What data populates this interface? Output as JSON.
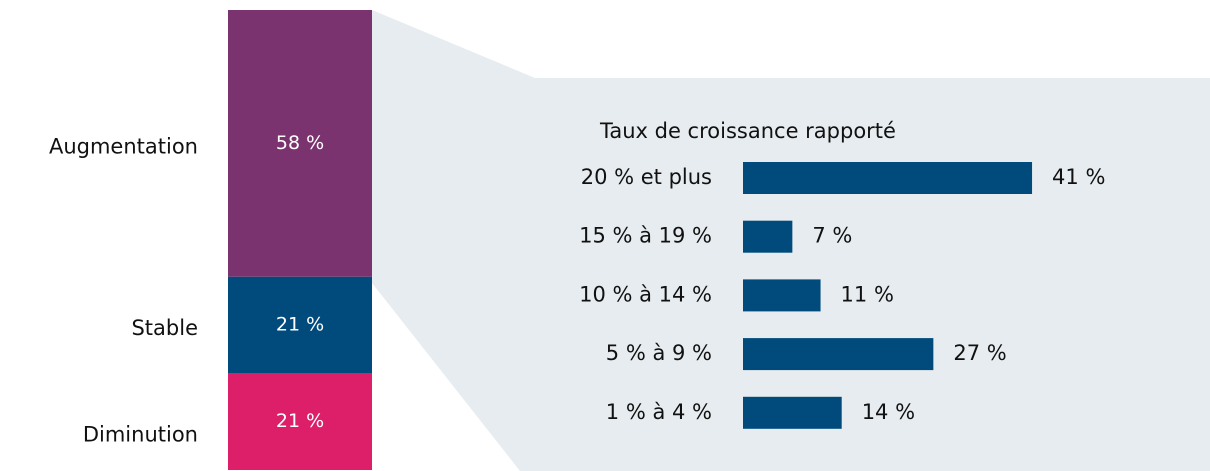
{
  "chart_data": [
    {
      "type": "stacked_column",
      "categories": [
        "Augmentation",
        "Stable",
        "Diminution"
      ],
      "values": [
        58,
        21,
        21
      ],
      "value_labels": [
        "58 %",
        "21 %",
        "21 %"
      ],
      "colors": [
        "#7b3370",
        "#004b7c",
        "#dd1f6a"
      ]
    },
    {
      "type": "hbar",
      "title": "Taux de croissance rapporté",
      "categories": [
        "20 % et plus",
        "15 % à 19 %",
        "10 % à 14 %",
        "5 % à 9 %",
        "1 % à 4 %"
      ],
      "values": [
        41,
        7,
        11,
        27,
        14
      ],
      "value_labels": [
        "41 %",
        "7 %",
        "11 %",
        "27 %",
        "14 %"
      ],
      "color": "#004b7c"
    }
  ]
}
